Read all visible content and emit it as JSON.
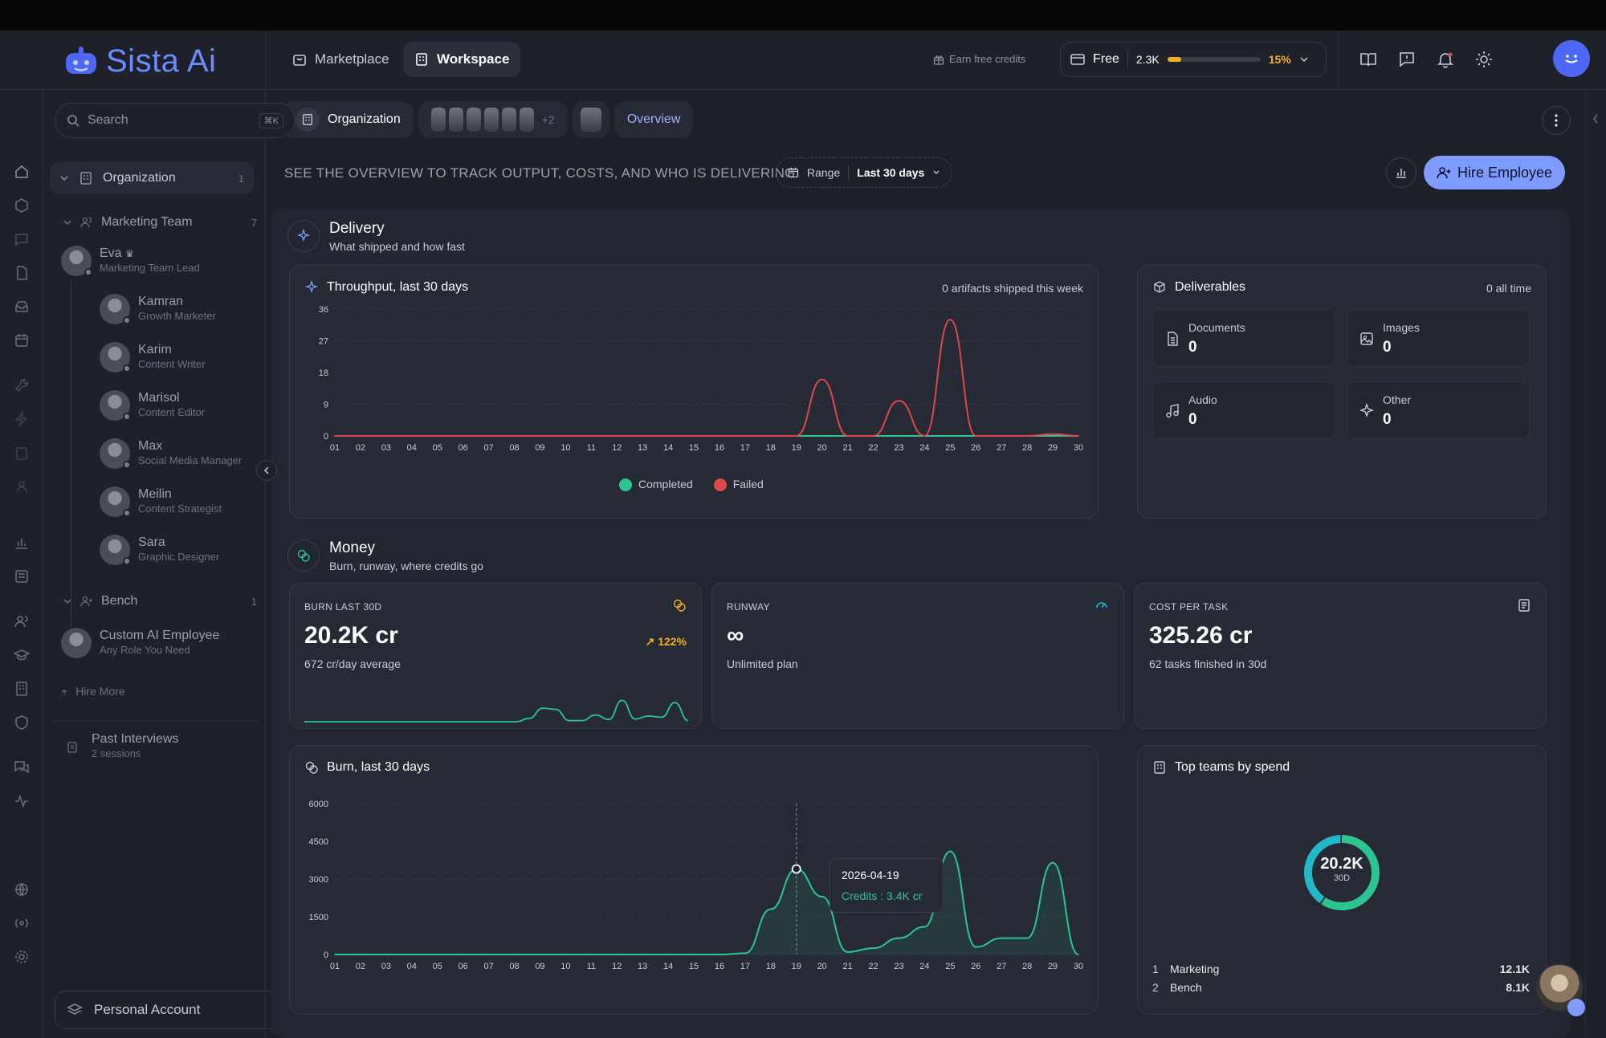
{
  "app": {
    "brand": "Sista Ai",
    "brand_color": "#6a8cff"
  },
  "header": {
    "nav": [
      {
        "label": "Marketplace"
      },
      {
        "label": "Workspace"
      }
    ],
    "earn_label": "Earn free credits",
    "plan": {
      "name": "Free",
      "credits": "2.3K",
      "usage_pct_label": "15%",
      "usage_fraction": 0.15
    }
  },
  "sidebar": {
    "search_placeholder": "Search",
    "search_shortcut": "⌘K",
    "organization": {
      "label": "Organization",
      "count": "1"
    },
    "team": {
      "label": "Marketing Team",
      "count": "7"
    },
    "people": [
      {
        "name": "Eva",
        "role": "Marketing Team Lead"
      },
      {
        "name": "Kamran",
        "role": "Growth Marketer"
      },
      {
        "name": "Karim",
        "role": "Content Writer"
      },
      {
        "name": "Marisol",
        "role": "Content Editor"
      },
      {
        "name": "Max",
        "role": "Social Media Manager"
      },
      {
        "name": "Meilin",
        "role": "Content Strategist"
      },
      {
        "name": "Sara",
        "role": "Graphic Designer"
      }
    ],
    "bench": {
      "label": "Bench",
      "count": "1"
    },
    "custom": {
      "name": "Custom AI Employee",
      "role": "Any Role You Need"
    },
    "hire_more": "Hire More",
    "past": {
      "label": "Past Interviews",
      "sub": "2 sessions"
    },
    "account": "Personal Account"
  },
  "main": {
    "tabs": {
      "org": "Organization",
      "extra_count": "+2",
      "overview": "Overview"
    },
    "subtitle": "SEE THE OVERVIEW TO TRACK OUTPUT, COSTS, AND WHO IS DELIVERING",
    "range_label": "Range",
    "range_value": "Last 30 days",
    "hire_button": "Hire Employee",
    "delivery": {
      "title": "Delivery",
      "sub": "What shipped and how fast"
    },
    "throughput": {
      "title": "Throughput, last 30 days",
      "note": "0 artifacts shipped this week",
      "legend_completed": "Completed",
      "legend_failed": "Failed"
    },
    "deliverables": {
      "title": "Deliverables",
      "note": "0 all time",
      "items": [
        {
          "label": "Documents",
          "value": "0"
        },
        {
          "label": "Images",
          "value": "0"
        },
        {
          "label": "Audio",
          "value": "0"
        },
        {
          "label": "Other",
          "value": "0"
        }
      ]
    },
    "money": {
      "title": "Money",
      "sub": "Burn, runway, where credits go"
    },
    "kpis": {
      "burn": {
        "label": "BURN LAST 30D",
        "value": "20.2K cr",
        "delta": "122%",
        "sub": "672 cr/day average"
      },
      "runway": {
        "label": "RUNWAY",
        "value": "∞",
        "sub": "Unlimited plan"
      },
      "cost": {
        "label": "COST PER TASK",
        "value": "325.26 cr",
        "sub": "62 tasks finished in 30d"
      }
    },
    "burn_chart": {
      "title": "Burn, last 30 days",
      "tooltip_date": "2026-04-19",
      "tooltip_value": "Credits : 3.4K cr"
    },
    "top_teams": {
      "title": "Top teams by spend",
      "center_value": "20.2K",
      "center_sub": "30D",
      "rows": [
        {
          "rank": "1",
          "name": "Marketing",
          "value": "12.1K"
        },
        {
          "rank": "2",
          "name": "Bench",
          "value": "8.1K"
        }
      ]
    }
  },
  "colors": {
    "completed": "#2cc590",
    "failed": "#e0474c",
    "accent": "#7f9bff",
    "warning": "#f3b21b",
    "teal": "#22b8c8"
  },
  "chart_data": [
    {
      "type": "line",
      "title": "Throughput, last 30 days",
      "x": [
        "01",
        "02",
        "03",
        "04",
        "05",
        "06",
        "07",
        "08",
        "09",
        "10",
        "11",
        "12",
        "13",
        "14",
        "15",
        "16",
        "17",
        "18",
        "19",
        "20",
        "21",
        "22",
        "23",
        "24",
        "25",
        "26",
        "27",
        "28",
        "29",
        "30"
      ],
      "yticks": [
        "0",
        "9",
        "18",
        "27",
        "36"
      ],
      "ylim": [
        0,
        36
      ],
      "series": [
        {
          "name": "Completed",
          "values": [
            0,
            0,
            0,
            0,
            0,
            0,
            0,
            0,
            0,
            0,
            0,
            0,
            0,
            0,
            0,
            0,
            0,
            0,
            0,
            0,
            0,
            0,
            0,
            0,
            0,
            0,
            0,
            0,
            0,
            0
          ]
        },
        {
          "name": "Failed",
          "values": [
            0,
            0,
            0,
            0,
            0,
            0,
            0,
            0,
            0,
            0,
            0,
            0,
            0,
            0,
            0,
            0,
            0,
            0,
            0,
            16,
            0,
            0,
            10,
            0,
            33,
            0,
            0,
            0,
            0.5,
            0
          ]
        }
      ],
      "legend": "bottom-center",
      "grid": true
    },
    {
      "type": "area",
      "title": "Burn, last 30 days",
      "x": [
        "01",
        "02",
        "03",
        "04",
        "05",
        "06",
        "07",
        "08",
        "09",
        "10",
        "11",
        "12",
        "13",
        "14",
        "15",
        "16",
        "17",
        "18",
        "19",
        "20",
        "21",
        "22",
        "23",
        "24",
        "25",
        "26",
        "27",
        "28",
        "29",
        "30"
      ],
      "yticks": [
        "0",
        "1500",
        "3000",
        "4500",
        "6000"
      ],
      "ylim": [
        0,
        6000
      ],
      "series": [
        {
          "name": "Credits",
          "values": [
            0,
            0,
            0,
            0,
            0,
            0,
            0,
            0,
            0,
            0,
            0,
            0,
            0,
            0,
            0,
            0,
            50,
            1800,
            3400,
            2300,
            100,
            250,
            650,
            1100,
            4100,
            300,
            650,
            650,
            3650,
            0
          ]
        }
      ],
      "grid": true
    },
    {
      "type": "area",
      "title": "BURN LAST 30D",
      "series": [
        {
          "name": "Burn",
          "values": [
            0,
            0,
            0,
            0,
            0,
            0,
            0,
            0,
            0,
            0,
            0,
            0,
            0,
            0,
            0,
            0,
            0,
            0.15,
            0.6,
            0.55,
            0.05,
            0.05,
            0.3,
            0.1,
            0.95,
            0.12,
            0.25,
            0.2,
            0.85,
            0.05
          ]
        }
      ]
    },
    {
      "type": "pie",
      "title": "Top teams by spend",
      "categories": [
        "Marketing",
        "Bench"
      ],
      "values": [
        12.1,
        8.1
      ]
    }
  ]
}
